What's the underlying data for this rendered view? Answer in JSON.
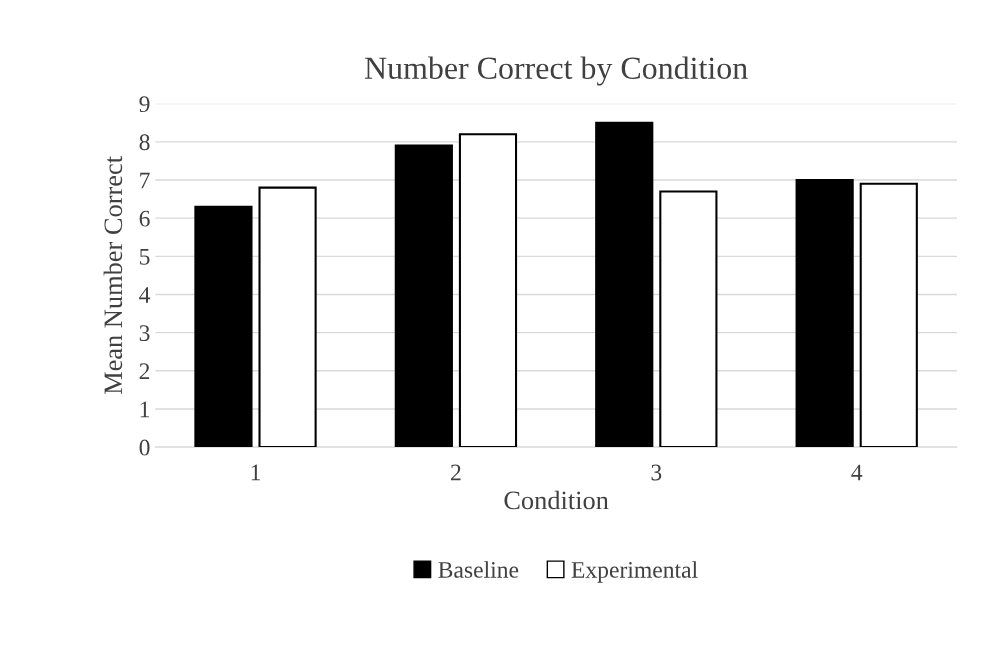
{
  "chart_data": {
    "type": "bar",
    "title": "Number Correct by Condition",
    "xlabel": "Condition",
    "ylabel": "Mean Number Correct",
    "categories": [
      "1",
      "2",
      "3",
      "4"
    ],
    "series": [
      {
        "name": "Baseline",
        "color": "#000000",
        "values": [
          6.3,
          7.9,
          8.5,
          7.0
        ]
      },
      {
        "name": "Experimental",
        "color": "#ffffff",
        "values": [
          6.8,
          8.2,
          6.7,
          6.9
        ]
      }
    ],
    "ylim": [
      0,
      9
    ],
    "yticks": [
      0,
      1,
      2,
      3,
      4,
      5,
      6,
      7,
      8,
      9
    ],
    "grid": "y",
    "legend": "bottom"
  }
}
